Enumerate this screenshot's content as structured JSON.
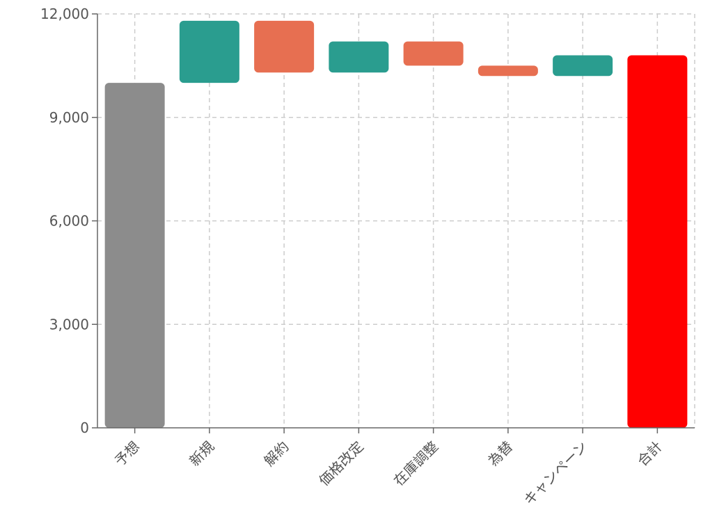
{
  "chart_data": {
    "type": "bar",
    "subtype": "waterfall",
    "title": "",
    "xlabel": "",
    "ylabel": "",
    "ylim": [
      0,
      12000
    ],
    "yticks": [
      0,
      3000,
      6000,
      9000,
      12000
    ],
    "ytick_labels": [
      "0",
      "3,000",
      "6,000",
      "9,000",
      "12,000"
    ],
    "grid": true,
    "categories": [
      "予想",
      "新規",
      "解約",
      "価格改定",
      "在庫調整",
      "為替",
      "キャンペーン",
      "合計"
    ],
    "bars": [
      {
        "category": "予想",
        "kind": "total",
        "start": 0,
        "end": 10000,
        "color": "#8c8c8c"
      },
      {
        "category": "新規",
        "kind": "increase",
        "start": 10000,
        "end": 11800,
        "color": "#2a9d8f"
      },
      {
        "category": "解約",
        "kind": "decrease",
        "start": 11800,
        "end": 10300,
        "color": "#e76f51"
      },
      {
        "category": "価格改定",
        "kind": "increase",
        "start": 10300,
        "end": 11200,
        "color": "#2a9d8f"
      },
      {
        "category": "在庫調整",
        "kind": "decrease",
        "start": 11200,
        "end": 10500,
        "color": "#e76f51"
      },
      {
        "category": "為替",
        "kind": "decrease",
        "start": 10500,
        "end": 10200,
        "color": "#e76f51"
      },
      {
        "category": "キャンペーン",
        "kind": "increase",
        "start": 10200,
        "end": 10800,
        "color": "#2a9d8f"
      },
      {
        "category": "合計",
        "kind": "total",
        "start": 0,
        "end": 10800,
        "color": "#ff0000"
      }
    ]
  }
}
